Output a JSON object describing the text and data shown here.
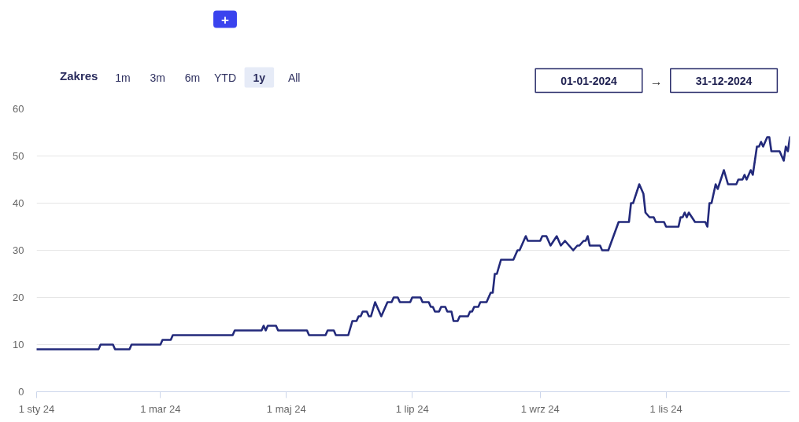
{
  "chart_data": {
    "type": "line",
    "x": [
      "2024-01-01",
      "2024-01-31",
      "2024-02-01",
      "2024-02-07",
      "2024-02-08",
      "2024-02-15",
      "2024-02-16",
      "2024-03-01",
      "2024-03-02",
      "2024-03-06",
      "2024-03-07",
      "2024-04-05",
      "2024-04-06",
      "2024-04-19",
      "2024-04-20",
      "2024-04-21",
      "2024-04-22",
      "2024-04-26",
      "2024-04-27",
      "2024-05-11",
      "2024-05-12",
      "2024-05-20",
      "2024-05-21",
      "2024-05-24",
      "2024-05-25",
      "2024-05-31",
      "2024-06-02",
      "2024-06-04",
      "2024-06-05",
      "2024-06-06",
      "2024-06-07",
      "2024-06-09",
      "2024-06-10",
      "2024-06-11",
      "2024-06-13",
      "2024-06-16",
      "2024-06-19",
      "2024-06-21",
      "2024-06-22",
      "2024-06-24",
      "2024-06-25",
      "2024-06-30",
      "2024-07-01",
      "2024-07-05",
      "2024-07-06",
      "2024-07-09",
      "2024-07-10",
      "2024-07-11",
      "2024-07-12",
      "2024-07-14",
      "2024-07-15",
      "2024-07-17",
      "2024-07-18",
      "2024-07-20",
      "2024-07-21",
      "2024-07-23",
      "2024-07-24",
      "2024-07-28",
      "2024-07-29",
      "2024-07-30",
      "2024-07-31",
      "2024-08-02",
      "2024-08-03",
      "2024-08-06",
      "2024-08-08",
      "2024-08-09",
      "2024-08-10",
      "2024-08-11",
      "2024-08-13",
      "2024-08-19",
      "2024-08-21",
      "2024-08-22",
      "2024-08-25",
      "2024-08-26",
      "2024-09-01",
      "2024-09-02",
      "2024-09-04",
      "2024-09-06",
      "2024-09-09",
      "2024-09-11",
      "2024-09-13",
      "2024-09-15",
      "2024-09-17",
      "2024-09-19",
      "2024-09-20",
      "2024-09-22",
      "2024-09-23",
      "2024-09-24",
      "2024-09-25",
      "2024-09-30",
      "2024-10-01",
      "2024-10-04",
      "2024-10-09",
      "2024-10-14",
      "2024-10-15",
      "2024-10-16",
      "2024-10-19",
      "2024-10-21",
      "2024-10-22",
      "2024-10-24",
      "2024-10-26",
      "2024-10-27",
      "2024-10-31",
      "2024-11-01",
      "2024-11-07",
      "2024-11-08",
      "2024-11-09",
      "2024-11-10",
      "2024-11-11",
      "2024-11-12",
      "2024-11-15",
      "2024-11-20",
      "2024-11-21",
      "2024-11-22",
      "2024-11-23",
      "2024-11-25",
      "2024-11-26",
      "2024-11-29",
      "2024-12-01",
      "2024-12-05",
      "2024-12-06",
      "2024-12-08",
      "2024-12-09",
      "2024-12-10",
      "2024-12-12",
      "2024-12-13",
      "2024-12-15",
      "2024-12-16",
      "2024-12-17",
      "2024-12-18",
      "2024-12-20",
      "2024-12-21",
      "2024-12-22",
      "2024-12-26",
      "2024-12-28",
      "2024-12-29",
      "2024-12-30",
      "2024-12-31"
    ],
    "series": [
      {
        "color": "#232a7b",
        "values": [
          9,
          9,
          10,
          10,
          9,
          9,
          10,
          10,
          11,
          11,
          12,
          12,
          13,
          13,
          14,
          13,
          14,
          14,
          13,
          13,
          12,
          12,
          13,
          13,
          12,
          12,
          15,
          15,
          16,
          16,
          17,
          17,
          16,
          16,
          19,
          16,
          19,
          19,
          20,
          20,
          19,
          19,
          20,
          20,
          19,
          19,
          18,
          18,
          17,
          17,
          18,
          18,
          17,
          17,
          15,
          15,
          16,
          16,
          17,
          17,
          18,
          18,
          19,
          19,
          21,
          21,
          25,
          25,
          28,
          28,
          30,
          30,
          33,
          32,
          32,
          33,
          33,
          31,
          33,
          31,
          32,
          31,
          30,
          31,
          31,
          32,
          32,
          33,
          31,
          31,
          30,
          30,
          36,
          36,
          40,
          40,
          44,
          42,
          38,
          37,
          37,
          36,
          36,
          35,
          35,
          37,
          37,
          38,
          37,
          38,
          36,
          36,
          35,
          40,
          40,
          44,
          43,
          47,
          44,
          44,
          45,
          45,
          46,
          45,
          47,
          46,
          52,
          52,
          53,
          52,
          54,
          54,
          51,
          51,
          49,
          52,
          51,
          54
        ]
      }
    ],
    "xlim": [
      "2024-01-01",
      "2024-12-31"
    ],
    "xticks": [
      {
        "value": "2024-01-01",
        "label": "1 sty 24"
      },
      {
        "value": "2024-03-01",
        "label": "1 mar 24"
      },
      {
        "value": "2024-05-01",
        "label": "1 maj 24"
      },
      {
        "value": "2024-07-01",
        "label": "1 lip 24"
      },
      {
        "value": "2024-09-01",
        "label": "1 wrz 24"
      },
      {
        "value": "2024-11-01",
        "label": "1 lis 24"
      }
    ],
    "ylim": [
      0,
      60
    ],
    "yticks": [
      0,
      10,
      20,
      30,
      40,
      50,
      60
    ],
    "grid": "y",
    "line_style": "solid",
    "annotations": [
      "+",
      "Zakres",
      "1m",
      "3m",
      "6m",
      "YTD",
      "1y",
      "All",
      "01-01-2024",
      "→",
      "31-12-2024"
    ]
  }
}
